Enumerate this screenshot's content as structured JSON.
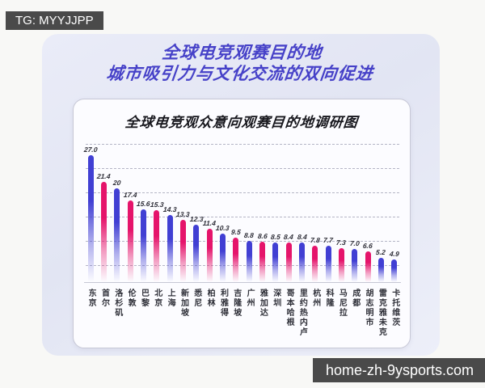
{
  "badges": {
    "top_left": "TG: MYYJJPP",
    "bottom_right": "home-zh-9ysports.com"
  },
  "header": {
    "title_line1": "全球电竞观赛目的地",
    "title_line2": "城市吸引力与文化交流的双向促进"
  },
  "panel": {
    "title": "全球电竞观众意向观赛目的地调研图"
  },
  "chart_data": {
    "type": "bar",
    "title": "全球电竞观众意向观赛目的地调研图",
    "categories": [
      "东京",
      "首尔",
      "洛杉矶",
      "伦敦",
      "巴黎",
      "北京",
      "上海",
      "新加坡",
      "悉尼",
      "柏林",
      "利雅得",
      "吉隆坡",
      "广州",
      "雅加达",
      "深圳",
      "哥本哈根",
      "里约热内卢",
      "杭州",
      "科隆",
      "马尼拉",
      "成都",
      "胡志明市",
      "雷克雅未克",
      "卡托维茨"
    ],
    "values": [
      27.0,
      21.4,
      20,
      17.4,
      15.6,
      15.3,
      14.3,
      13.3,
      12.3,
      11.4,
      10.3,
      9.5,
      8.8,
      8.6,
      8.5,
      8.4,
      8.4,
      7.8,
      7.7,
      7.3,
      7.0,
      6.6,
      5.2,
      4.9
    ],
    "values_display": [
      "27.0",
      "21.4",
      "20",
      "17.4",
      "15.6",
      "15.3",
      "14.3",
      "13.3",
      "12.3",
      "11.4",
      "10.3",
      "9.5",
      "8.8",
      "8.6",
      "8.5",
      "8.4",
      "8.4",
      "7.8",
      "7.7",
      "7.3",
      "7.0",
      "6.6",
      "5.2",
      "4.9"
    ],
    "bar_colors": [
      "blue",
      "pink",
      "blue",
      "pink",
      "blue",
      "pink",
      "blue",
      "pink",
      "blue",
      "pink",
      "blue",
      "pink",
      "blue",
      "pink",
      "blue",
      "pink",
      "blue",
      "pink",
      "blue",
      "pink",
      "blue",
      "pink",
      "blue",
      "blue"
    ],
    "colors": {
      "blue": "#413fd3",
      "pink": "#e5146b"
    },
    "xlabel": "",
    "ylabel": "",
    "ylim": [
      0,
      30
    ],
    "gridline_step": 5,
    "grid": "horizontal-dashed",
    "legend": "none"
  },
  "style": {
    "accent": "#4641c8",
    "badge_bg": "#4a4a4a",
    "card_bg": "#e5e8f4",
    "panel_bg": "#fcfcff"
  }
}
